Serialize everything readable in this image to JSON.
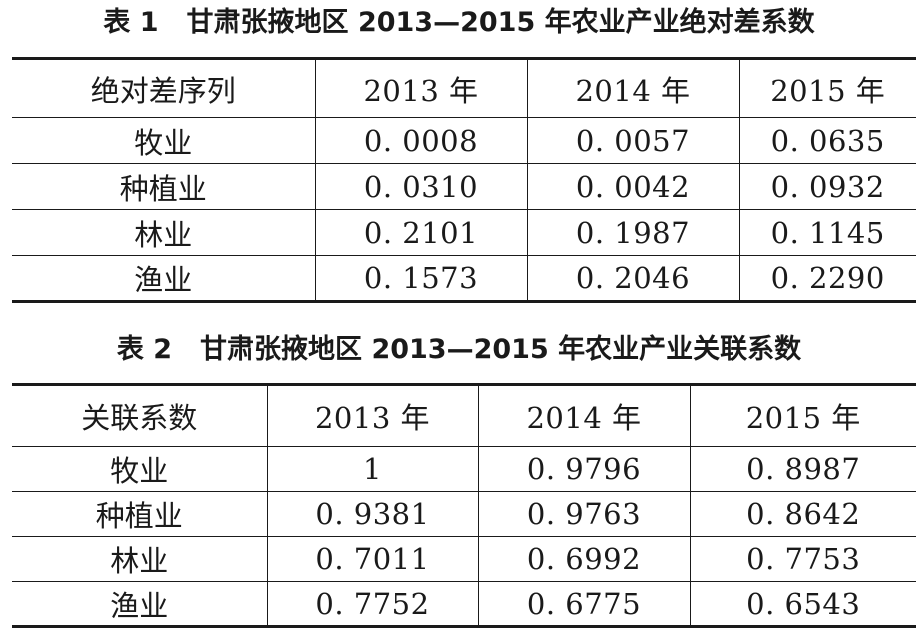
{
  "table1": {
    "number": "表 1",
    "title": "甘肃张掖地区 2013—2015 年农业产业绝对差系数",
    "headers": [
      "绝对差序列",
      "2013 年",
      "2014 年",
      "2015 年"
    ],
    "rows": [
      {
        "name": "牧业",
        "values": [
          "0. 0008",
          "0. 0057",
          "0. 0635"
        ]
      },
      {
        "name": "种植业",
        "values": [
          "0. 0310",
          "0. 0042",
          "0. 0932"
        ]
      },
      {
        "name": "林业",
        "values": [
          "0. 2101",
          "0. 1987",
          "0. 1145"
        ]
      },
      {
        "name": "渔业",
        "values": [
          "0. 1573",
          "0. 2046",
          "0. 2290"
        ]
      }
    ]
  },
  "table2": {
    "number": "表 2",
    "title": "甘肃张掖地区 2013—2015 年农业产业关联系数",
    "headers": [
      "关联系数",
      "2013 年",
      "2014 年",
      "2015 年"
    ],
    "rows": [
      {
        "name": "牧业",
        "values": [
          "1",
          "0. 9796",
          "0. 8987"
        ]
      },
      {
        "name": "种植业",
        "values": [
          "0. 9381",
          "0. 9763",
          "0. 8642"
        ]
      },
      {
        "name": "林业",
        "values": [
          "0. 7011",
          "0. 6992",
          "0. 7753"
        ]
      },
      {
        "name": "渔业",
        "values": [
          "0. 7752",
          "0. 6775",
          "0. 6543"
        ]
      }
    ]
  }
}
